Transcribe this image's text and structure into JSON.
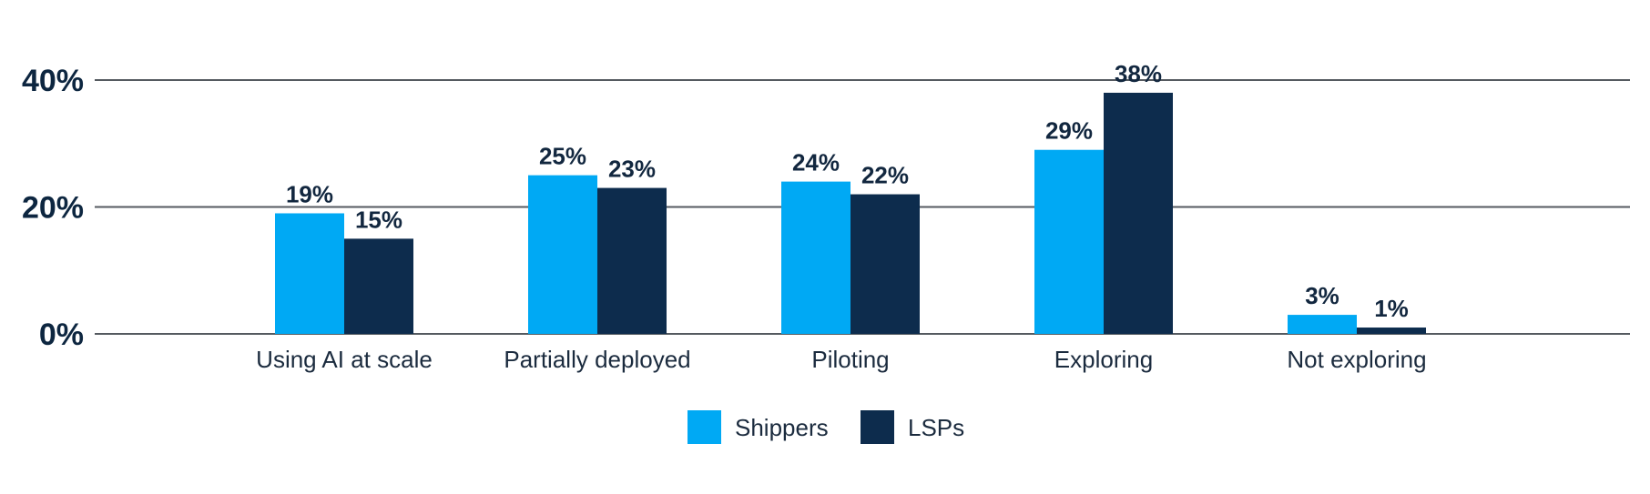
{
  "chart_data": {
    "type": "bar",
    "title": "",
    "xlabel": "",
    "ylabel": "",
    "ylim": [
      0,
      40
    ],
    "y_ticks": [
      0,
      20,
      40
    ],
    "y_tick_format": "{v}%",
    "grid": true,
    "legend_position": "bottom",
    "categories": [
      "Using AI at scale",
      "Partially deployed",
      "Piloting",
      "Exploring",
      "Not exploring"
    ],
    "series": [
      {
        "name": "Shippers",
        "color": "#00a9f4",
        "values": [
          19,
          25,
          24,
          29,
          3
        ]
      },
      {
        "name": "LSPs",
        "color": "#0d2c4d",
        "values": [
          15,
          23,
          22,
          38,
          1
        ]
      }
    ],
    "data_label_format": "{v}%"
  }
}
